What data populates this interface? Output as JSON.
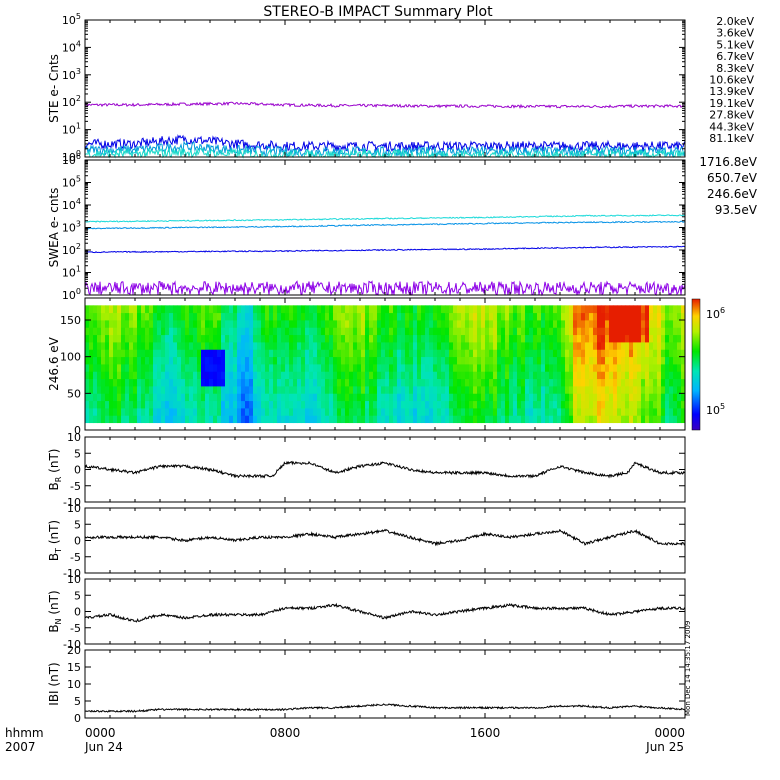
{
  "title": "STEREO-B IMPACT Summary Plot",
  "footer": {
    "unit_label": "hhmm",
    "year": "2007",
    "start_date": "Jun 24",
    "end_date": "Jun 25",
    "timestamp": "Mon Dec 14 14:35:17 2009"
  },
  "colors": {
    "background": "#ffffff",
    "axes": "#000000",
    "trace": "#000000"
  },
  "legend": {
    "ste": [
      {
        "label": "2.0keV",
        "color": "#9900cc"
      },
      {
        "label": "3.6keV",
        "color": "#5a00cc"
      },
      {
        "label": "5.1keV",
        "color": "#0000e6"
      },
      {
        "label": "6.7keV",
        "color": "#009ad9"
      },
      {
        "label": "8.3keV",
        "color": "#19d9c9"
      },
      {
        "label": "10.6keV",
        "color": "#00d96e"
      },
      {
        "label": "13.9keV",
        "color": "#25c700"
      },
      {
        "label": "19.1keV",
        "color": "#b3e600"
      },
      {
        "label": "27.8keV",
        "color": "#e6b800"
      },
      {
        "label": "44.3keV",
        "color": "#e67300"
      },
      {
        "label": "81.1keV",
        "color": "#e60000"
      }
    ],
    "swea": [
      {
        "label": "1716.8eV",
        "color": "#8d00e6"
      },
      {
        "label": "650.7eV",
        "color": "#0000e6"
      },
      {
        "label": "246.6eV",
        "color": "#0090e6"
      },
      {
        "label": "93.5eV",
        "color": "#19d9d9"
      }
    ]
  },
  "chart_data": [
    {
      "id": "ste",
      "type": "line",
      "ylabel": "STE e- Cnts",
      "yscale": "log",
      "ylim": [
        1,
        100000
      ],
      "yticks": [
        {
          "value": 1,
          "mant": "10",
          "exp": "0"
        },
        {
          "value": 10,
          "mant": "10",
          "exp": "1"
        },
        {
          "value": 100,
          "mant": "10",
          "exp": "2"
        },
        {
          "value": 1000,
          "mant": "10",
          "exp": "3"
        },
        {
          "value": 10000,
          "mant": "10",
          "exp": "4"
        },
        {
          "value": 100000,
          "mant": "10",
          "exp": "5"
        }
      ],
      "xlim": [
        0,
        24
      ],
      "series": [
        {
          "name": "2.0keV",
          "color": "#9900cc",
          "x": [
            0,
            2,
            4,
            6,
            8,
            10,
            12,
            14,
            16,
            18,
            20,
            22,
            24
          ],
          "values": [
            80,
            80,
            85,
            90,
            80,
            75,
            75,
            72,
            72,
            70,
            70,
            72,
            72
          ]
        },
        {
          "name": "5.1keV",
          "color": "#0000e6",
          "x": [
            0,
            2,
            4,
            6,
            8,
            10,
            12,
            14,
            16,
            18,
            20,
            22,
            24
          ],
          "values": [
            3.0,
            3.0,
            4.5,
            3.0,
            2.5,
            2.5,
            2.5,
            2.5,
            2.5,
            2.5,
            2.5,
            2.5,
            2.5
          ]
        },
        {
          "name": "6.7keV",
          "color": "#009ad9",
          "x": [
            0,
            2,
            4,
            6,
            8,
            10,
            12,
            14,
            16,
            18,
            20,
            22,
            24
          ],
          "values": [
            1.8,
            1.8,
            2.4,
            1.8,
            1.6,
            1.6,
            1.6,
            1.6,
            1.6,
            1.6,
            1.6,
            1.6,
            1.6
          ]
        },
        {
          "name": "8.3keV",
          "color": "#19d9c9",
          "x": [
            0,
            2,
            4,
            6,
            8,
            10,
            12,
            14,
            16,
            18,
            20,
            22,
            24
          ],
          "values": [
            1.3,
            1.3,
            1.5,
            1.3,
            1.2,
            1.2,
            1.2,
            1.2,
            1.2,
            1.2,
            1.2,
            1.2,
            1.2
          ]
        }
      ]
    },
    {
      "id": "swea",
      "type": "line",
      "ylabel": "SWEA e- cnts",
      "yscale": "log",
      "ylim": [
        1,
        1000000
      ],
      "yticks": [
        {
          "value": 1,
          "mant": "10",
          "exp": "0"
        },
        {
          "value": 10,
          "mant": "10",
          "exp": "1"
        },
        {
          "value": 100,
          "mant": "10",
          "exp": "2"
        },
        {
          "value": 1000,
          "mant": "10",
          "exp": "3"
        },
        {
          "value": 10000,
          "mant": "10",
          "exp": "4"
        },
        {
          "value": 100000,
          "mant": "10",
          "exp": "5"
        },
        {
          "value": 1000000,
          "mant": "10",
          "exp": "6"
        }
      ],
      "xlim": [
        0,
        24
      ],
      "series": [
        {
          "name": "93.5eV",
          "color": "#19d9d9",
          "x": [
            0,
            4,
            8,
            12,
            16,
            20,
            24
          ],
          "values": [
            1800,
            2000,
            2200,
            2500,
            2800,
            3300,
            3500
          ]
        },
        {
          "name": "246.6eV",
          "color": "#0090e6",
          "x": [
            0,
            4,
            8,
            12,
            16,
            20,
            24
          ],
          "values": [
            900,
            1000,
            1100,
            1300,
            1500,
            1700,
            1800
          ]
        },
        {
          "name": "650.7eV",
          "color": "#0000e6",
          "x": [
            0,
            4,
            8,
            12,
            16,
            20,
            24
          ],
          "values": [
            80,
            85,
            90,
            100,
            110,
            130,
            140
          ]
        },
        {
          "name": "1716.8eV",
          "color": "#8d00e6",
          "x": [
            0,
            4,
            8,
            12,
            16,
            20,
            24
          ],
          "values": [
            2,
            2,
            2,
            2,
            2,
            2,
            2
          ]
        }
      ]
    },
    {
      "id": "spectrogram",
      "type": "heatmap",
      "ylabel": "246.6 eV",
      "ylim": [
        0,
        180
      ],
      "yticks": [
        0,
        50,
        100,
        150
      ],
      "xlim": [
        0,
        24
      ],
      "y_data_range": [
        10,
        170
      ],
      "colorbar": {
        "ticks": [
          {
            "mant": "10",
            "exp": "6"
          },
          {
            "mant": "10",
            "exp": "5"
          }
        ]
      }
    },
    {
      "id": "br",
      "type": "line",
      "ylabel": "B",
      "ylabel_sub": "R",
      "ylabel_unit": "(nT)",
      "ylim": [
        -10,
        10
      ],
      "yticks": [
        -10,
        -5,
        0,
        5,
        10
      ],
      "xlim": [
        0,
        24
      ],
      "x": [
        0,
        1,
        2,
        3,
        4,
        5,
        6,
        7,
        7.5,
        8,
        9,
        10,
        11,
        12,
        13,
        14,
        15,
        16,
        17,
        18,
        19,
        20,
        21,
        21.7,
        22,
        23,
        24
      ],
      "values": [
        1,
        0,
        -1,
        1,
        1,
        0,
        -2,
        -2,
        -2,
        2,
        2,
        -1,
        1,
        2,
        0,
        -1,
        -1,
        -1,
        -2,
        -2,
        1,
        -1,
        -2,
        -1,
        2,
        -1,
        -1
      ]
    },
    {
      "id": "bt",
      "type": "line",
      "ylabel": "B",
      "ylabel_sub": "T",
      "ylabel_unit": "(nT)",
      "ylim": [
        -10,
        10
      ],
      "yticks": [
        -10,
        -5,
        0,
        5,
        10
      ],
      "xlim": [
        0,
        24
      ],
      "x": [
        0,
        1,
        2,
        3,
        4,
        5,
        6,
        7,
        8,
        9,
        10,
        11,
        12,
        13,
        14,
        15,
        16,
        17,
        18,
        19,
        20,
        21,
        22,
        23,
        24
      ],
      "values": [
        1,
        1,
        1,
        1,
        0,
        1,
        0,
        1,
        1,
        2,
        1,
        2,
        3,
        1,
        -1,
        0,
        2,
        1,
        2,
        3,
        -1,
        1,
        3,
        -1,
        -1
      ]
    },
    {
      "id": "bn",
      "type": "line",
      "ylabel": "B",
      "ylabel_sub": "N",
      "ylabel_unit": "(nT)",
      "ylim": [
        -10,
        10
      ],
      "yticks": [
        -10,
        -5,
        0,
        5,
        10
      ],
      "xlim": [
        0,
        24
      ],
      "x": [
        0,
        1,
        2,
        3,
        4,
        5,
        6,
        7,
        8,
        9,
        10,
        11,
        12,
        13,
        14,
        15,
        16,
        17,
        18,
        19,
        20,
        21,
        22,
        23,
        24
      ],
      "values": [
        -2,
        -1,
        -3,
        -1,
        -2,
        -1,
        -1,
        -1,
        1,
        1,
        2,
        0,
        -2,
        0,
        -1,
        0,
        1,
        2,
        1,
        1,
        1,
        -1,
        0,
        1,
        1
      ]
    },
    {
      "id": "bmag",
      "type": "line",
      "ylabel": "IBI",
      "ylabel_unit": "(nT)",
      "ylim": [
        0,
        20
      ],
      "yticks": [
        0,
        5,
        10,
        15,
        20
      ],
      "xlim": [
        0,
        24
      ],
      "x": [
        0,
        1,
        2,
        3,
        4,
        5,
        6,
        7,
        8,
        9,
        10,
        11,
        12,
        13,
        14,
        15,
        16,
        17,
        18,
        19,
        20,
        21,
        22,
        23,
        24
      ],
      "values": [
        2,
        2,
        2,
        2.5,
        2.5,
        2.5,
        2.5,
        2.5,
        2.5,
        3,
        3,
        3.5,
        4,
        3.5,
        3,
        3,
        3,
        3,
        3,
        3.5,
        3.5,
        3,
        3.5,
        3,
        2.5
      ]
    }
  ],
  "x_axis": {
    "ticks": [
      {
        "value": 0,
        "label": "0000"
      },
      {
        "value": 8,
        "label": "0800"
      },
      {
        "value": 16,
        "label": "1600"
      },
      {
        "value": 24,
        "label": "0000"
      }
    ]
  }
}
